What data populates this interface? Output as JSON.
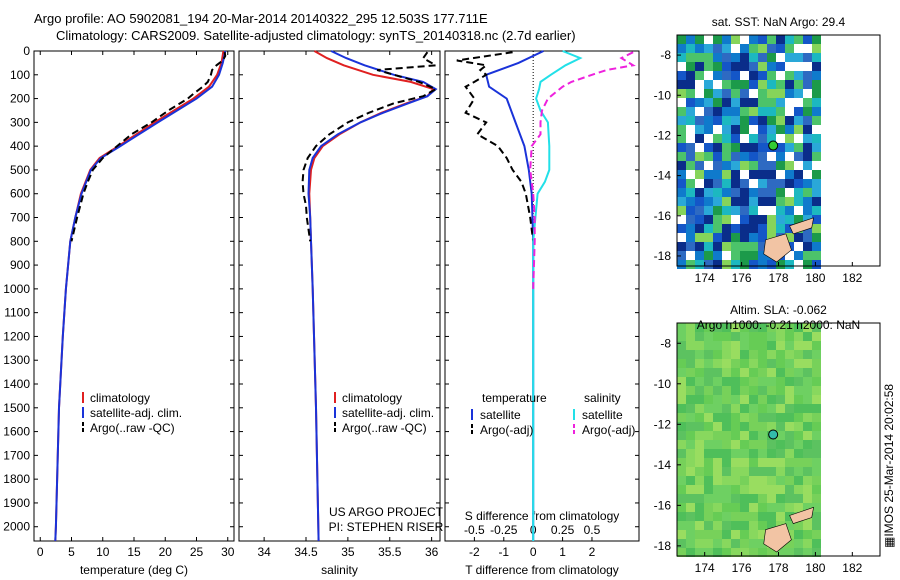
{
  "header": {
    "title1": "Argo profile: AO 5902081_194 20-Mar-2014 20140322_295 12.503S 177.711E",
    "title2": "Climatology: CARS2009. Satellite-adjusted climatology: synTS_20140318.nc (2.7d earlier)"
  },
  "stamp": "IMOS 25-Mar-2014 20:02:58",
  "colors": {
    "climatology": "#e02020",
    "satellite": "#1a33d9",
    "argo": "#000000",
    "sal_sat": "#22e0e8",
    "sal_argo": "#ee22dd"
  },
  "chart_data": [
    {
      "type": "line",
      "id": "temperature",
      "xlabel": "temperature (deg C)",
      "xlim": [
        -1,
        31
      ],
      "xticks": [
        0,
        5,
        10,
        15,
        20,
        25,
        30
      ],
      "ylim": [
        2060,
        0
      ],
      "yticks": [
        0,
        100,
        200,
        300,
        400,
        500,
        600,
        700,
        800,
        900,
        1000,
        1100,
        1200,
        1300,
        1400,
        1500,
        1600,
        1700,
        1800,
        1900,
        2000
      ],
      "legend": [
        "climatology",
        "satellite-adj. clim.",
        "Argo(..raw -QC)"
      ],
      "series": [
        {
          "name": "climatology",
          "depth": [
            0,
            50,
            100,
            150,
            200,
            300,
            400,
            450,
            500,
            600,
            700,
            800,
            1000,
            1200,
            1500,
            2000,
            2060
          ],
          "values": [
            29.3,
            29.0,
            28.3,
            27.0,
            24.5,
            18.3,
            12.5,
            9.5,
            8.0,
            6.5,
            5.6,
            4.8,
            4.1,
            3.6,
            3.0,
            2.5,
            2.4
          ]
        },
        {
          "name": "satellite-adj. clim.",
          "depth": [
            0,
            50,
            100,
            150,
            200,
            300,
            400,
            450,
            500,
            600,
            700,
            800,
            1000,
            1200,
            1500,
            2000,
            2060
          ],
          "values": [
            29.6,
            29.2,
            28.6,
            27.5,
            25.0,
            18.8,
            12.8,
            9.7,
            8.1,
            6.6,
            5.6,
            4.8,
            4.1,
            3.6,
            3.0,
            2.5,
            2.4
          ]
        },
        {
          "name": "Argo(..raw -QC)",
          "depth": [
            5,
            20,
            40,
            60,
            80,
            100,
            130,
            150,
            180,
            200,
            250,
            300,
            350,
            400,
            450,
            500,
            550,
            600,
            700,
            800
          ],
          "values": [
            29.5,
            29.6,
            29.2,
            28.2,
            27.5,
            27.3,
            26.8,
            26.0,
            24.5,
            23.6,
            20.5,
            17.8,
            14.6,
            12.3,
            10.0,
            8.4,
            7.6,
            6.9,
            5.9,
            5.0
          ]
        }
      ]
    },
    {
      "type": "line",
      "id": "salinity",
      "xlabel": "salinity",
      "xlim": [
        33.7,
        36.1
      ],
      "xticks": [
        34,
        34.5,
        35,
        35.5,
        36
      ],
      "ylim": [
        2060,
        0
      ],
      "legend": [
        "climatology",
        "satellite-adj. clim.",
        "Argo(..raw -QC)"
      ],
      "annotations": [
        "US ARGO PROJECT",
        "PI: STEPHEN RISER"
      ],
      "series": [
        {
          "name": "climatology",
          "depth": [
            0,
            30,
            60,
            100,
            130,
            160,
            190,
            220,
            260,
            300,
            350,
            400,
            450,
            500,
            600,
            700,
            800,
            1000,
            1500,
            2060
          ],
          "values": [
            34.6,
            34.75,
            34.95,
            35.3,
            35.75,
            36.02,
            35.95,
            35.7,
            35.4,
            35.15,
            34.9,
            34.7,
            34.6,
            34.56,
            34.54,
            34.55,
            34.56,
            34.58,
            34.62,
            34.65
          ]
        },
        {
          "name": "satellite-adj. clim.",
          "depth": [
            0,
            30,
            60,
            100,
            130,
            160,
            190,
            220,
            260,
            300,
            350,
            400,
            450,
            500,
            600,
            700,
            800,
            1000,
            1500,
            2060
          ],
          "values": [
            34.8,
            34.98,
            35.2,
            35.55,
            35.9,
            36.05,
            35.95,
            35.72,
            35.42,
            35.15,
            34.88,
            34.68,
            34.58,
            34.54,
            34.53,
            34.55,
            34.56,
            34.58,
            34.62,
            34.65
          ]
        },
        {
          "name": "Argo(..raw -QC)",
          "depth": [
            5,
            30,
            60,
            80,
            100,
            130,
            160,
            190,
            220,
            260,
            300,
            350,
            400,
            450,
            500,
            550,
            600,
            650,
            700,
            800
          ],
          "values": [
            35.95,
            35.9,
            36.05,
            35.35,
            35.55,
            35.85,
            36.05,
            35.9,
            35.55,
            35.25,
            35.0,
            34.78,
            34.62,
            34.52,
            34.47,
            34.46,
            34.47,
            34.5,
            34.51,
            34.55
          ]
        }
      ]
    },
    {
      "type": "line",
      "id": "difference",
      "xlabel": "T difference from climatology",
      "xlabel_top": "S difference from climatology",
      "xlim": [
        -3,
        3.6
      ],
      "xticks": [
        "-2",
        "-1",
        "0",
        "1",
        "2"
      ],
      "xticks_top": [
        "-0.5",
        "-0.25",
        "0",
        "0.25",
        "0.5"
      ],
      "ylim": [
        2060,
        0
      ],
      "legend_temperature": {
        "title": "temperature",
        "items": [
          "satellite",
          "Argo(-adj)"
        ]
      },
      "legend_salinity": {
        "title": "salinity",
        "items": [
          "satellite",
          "Argo(-adj)"
        ]
      },
      "series": [
        {
          "name": "temperature satellite",
          "depth": [
            0,
            50,
            100,
            150,
            200,
            300,
            400,
            500,
            600,
            800,
            1200,
            2060
          ],
          "values": [
            0.35,
            -0.5,
            -1.6,
            -1.5,
            -0.9,
            -0.6,
            -0.3,
            -0.15,
            -0.05,
            0.0,
            0.0,
            0.0
          ]
        },
        {
          "name": "temperature Argo(-adj)",
          "depth": [
            5,
            40,
            60,
            80,
            100,
            130,
            150,
            200,
            260,
            300,
            350,
            400,
            450,
            500,
            550,
            600,
            700,
            800
          ],
          "values": [
            -0.7,
            -2.6,
            -1.6,
            -1.8,
            -1.6,
            -2.0,
            -2.3,
            -2.0,
            -2.3,
            -1.6,
            -1.9,
            -1.2,
            -0.9,
            -0.7,
            -0.4,
            -0.25,
            -0.1,
            0.0
          ]
        },
        {
          "name": "salinity satellite",
          "depth": [
            0,
            30,
            60,
            100,
            130,
            160,
            200,
            250,
            300,
            400,
            500,
            550,
            600,
            800,
            1200,
            2060
          ],
          "values": [
            1.0,
            1.6,
            1.1,
            0.6,
            0.25,
            0.2,
            0.1,
            0.25,
            0.5,
            0.55,
            0.55,
            0.4,
            0.15,
            0.0,
            0.0,
            0.0
          ]
        },
        {
          "name": "salinity Argo(-adj)",
          "depth": [
            5,
            30,
            60,
            80,
            100,
            130,
            150,
            200,
            250,
            300,
            350,
            400,
            500,
            600,
            700,
            800,
            1000
          ],
          "values": [
            3.4,
            3.0,
            3.4,
            2.5,
            2.0,
            1.3,
            1.0,
            0.5,
            0.3,
            0.25,
            0.25,
            -0.05,
            -0.1,
            0.0,
            0.05,
            0.05,
            0.0
          ]
        }
      ]
    },
    {
      "type": "heatmap",
      "id": "sst_map",
      "title": "sat. SST: NaN Argo: 29.4",
      "xticks": [
        174,
        176,
        178,
        180,
        182
      ],
      "yticks": [
        -8,
        -10,
        -12,
        -14,
        -16,
        -18
      ],
      "xlim": [
        172.5,
        183.5
      ],
      "ylim": [
        -18.5,
        -7
      ]
    },
    {
      "type": "heatmap",
      "id": "sla_map",
      "title": "Altim. SLA: -0.062",
      "subtitle": "Argo h1000: -0.21 h2000: NaN",
      "xticks": [
        174,
        176,
        178,
        180,
        182
      ],
      "yticks": [
        -8,
        -10,
        -12,
        -14,
        -16,
        -18
      ],
      "xlim": [
        172.5,
        183.5
      ],
      "ylim": [
        -18.5,
        -7
      ]
    }
  ]
}
